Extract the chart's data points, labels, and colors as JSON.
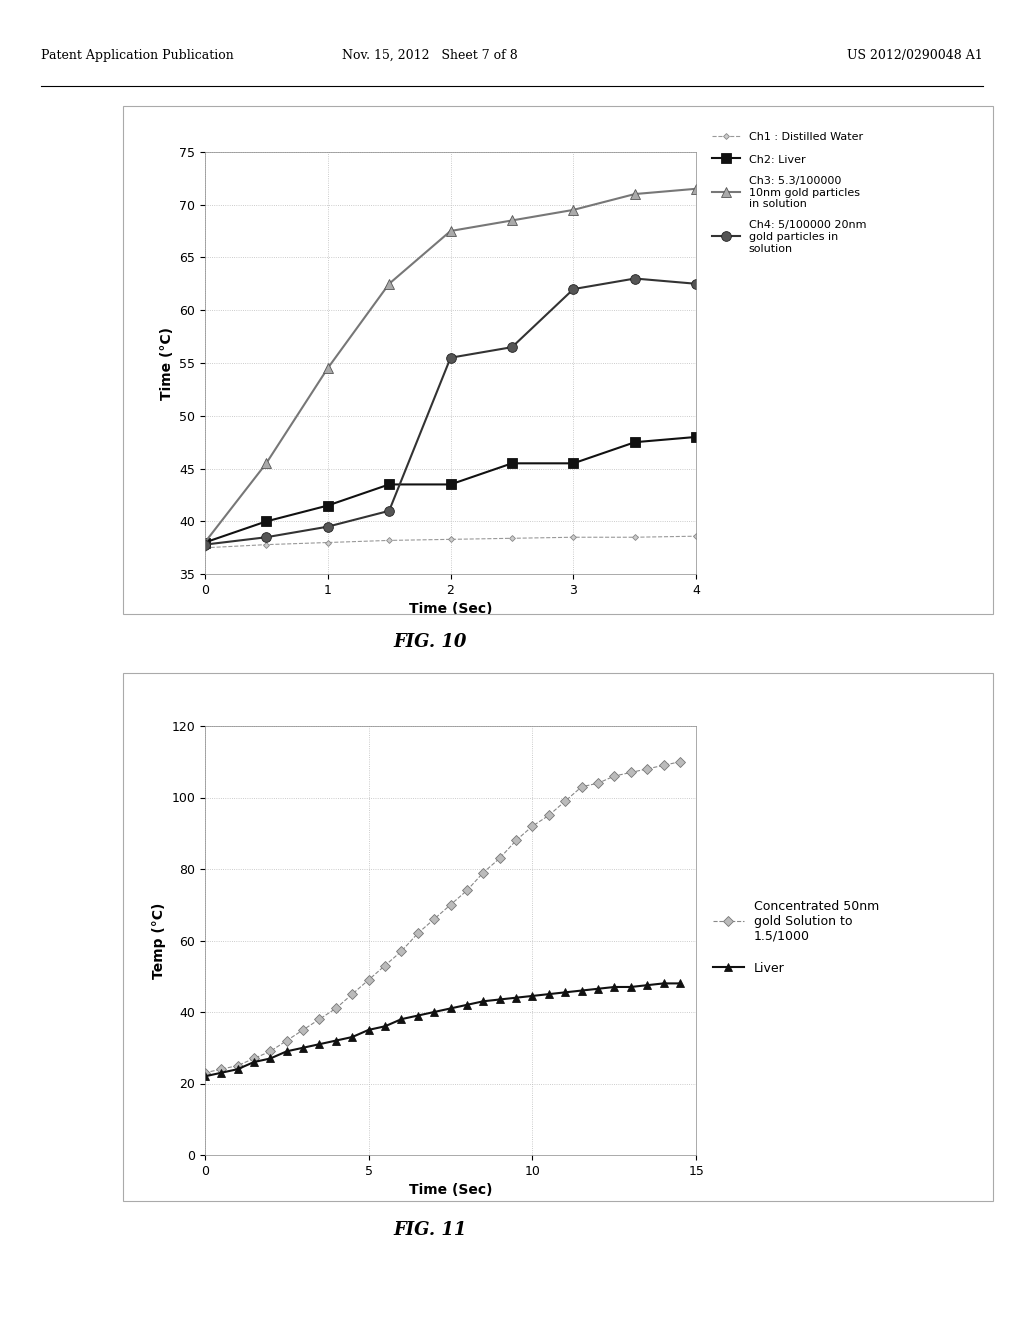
{
  "fig10": {
    "xlabel": "Time (Sec)",
    "ylabel": "Time (°C)",
    "xlim": [
      0,
      4
    ],
    "ylim": [
      35,
      75
    ],
    "yticks": [
      35,
      40,
      45,
      50,
      55,
      60,
      65,
      70,
      75
    ],
    "xticks": [
      0,
      1,
      2,
      3,
      4
    ],
    "series": [
      {
        "label": "Ch1 : Distilled Water",
        "x": [
          0,
          0.5,
          1.0,
          1.5,
          2.0,
          2.5,
          3.0,
          3.5,
          4.0
        ],
        "y": [
          37.5,
          37.8,
          38.0,
          38.2,
          38.3,
          38.4,
          38.5,
          38.5,
          38.6
        ],
        "color": "#999999",
        "marker": "D",
        "markersize": 3,
        "linestyle": "--",
        "linewidth": 0.8,
        "markerfacecolor": "#cccccc",
        "markeredgecolor": "#888888"
      },
      {
        "label": "Ch2: Liver",
        "x": [
          0,
          0.5,
          1.0,
          1.5,
          2.0,
          2.5,
          3.0,
          3.5,
          4.0
        ],
        "y": [
          38.0,
          40.0,
          41.5,
          43.5,
          43.5,
          45.5,
          45.5,
          47.5,
          48.0
        ],
        "color": "#111111",
        "marker": "s",
        "markersize": 7,
        "linestyle": "-",
        "linewidth": 1.5,
        "markerfacecolor": "#111111",
        "markeredgecolor": "#111111"
      },
      {
        "label": "Ch3: 5.3/100000\n10nm gold particles\nin solution",
        "x": [
          0,
          0.5,
          1.0,
          1.5,
          2.0,
          2.5,
          3.0,
          3.5,
          4.0
        ],
        "y": [
          38.0,
          45.5,
          54.5,
          62.5,
          67.5,
          68.5,
          69.5,
          71.0,
          71.5
        ],
        "color": "#777777",
        "marker": "^",
        "markersize": 7,
        "linestyle": "-",
        "linewidth": 1.5,
        "markerfacecolor": "#aaaaaa",
        "markeredgecolor": "#555555"
      },
      {
        "label": "Ch4: 5/100000 20nm\ngold particles in\nsolution",
        "x": [
          0,
          0.5,
          1.0,
          1.5,
          2.0,
          2.5,
          3.0,
          3.5,
          4.0
        ],
        "y": [
          37.8,
          38.5,
          39.5,
          41.0,
          55.5,
          56.5,
          62.0,
          63.0,
          62.5
        ],
        "color": "#333333",
        "marker": "o",
        "markersize": 7,
        "linestyle": "-",
        "linewidth": 1.5,
        "markerfacecolor": "#555555",
        "markeredgecolor": "#222222"
      }
    ]
  },
  "fig11": {
    "xlabel": "Time (Sec)",
    "ylabel": "Temp (°C)",
    "xlim": [
      0,
      15
    ],
    "ylim": [
      0,
      120
    ],
    "yticks": [
      0,
      20,
      40,
      60,
      80,
      100,
      120
    ],
    "xticks": [
      0,
      5,
      10,
      15
    ],
    "series": [
      {
        "label": "Concentrated 50nm\ngold Solution to\n1.5/1000",
        "x": [
          0,
          0.5,
          1.0,
          1.5,
          2.0,
          2.5,
          3.0,
          3.5,
          4.0,
          4.5,
          5.0,
          5.5,
          6.0,
          6.5,
          7.0,
          7.5,
          8.0,
          8.5,
          9.0,
          9.5,
          10.0,
          10.5,
          11.0,
          11.5,
          12.0,
          12.5,
          13.0,
          13.5,
          14.0,
          14.5
        ],
        "y": [
          23,
          24,
          25,
          27,
          29,
          32,
          35,
          38,
          41,
          45,
          49,
          53,
          57,
          62,
          66,
          70,
          74,
          79,
          83,
          88,
          92,
          95,
          99,
          103,
          104,
          106,
          107,
          108,
          109,
          110
        ],
        "color": "#888888",
        "marker": "D",
        "markersize": 5,
        "linestyle": "--",
        "linewidth": 0.8,
        "markerfacecolor": "#bbbbbb",
        "markeredgecolor": "#777777"
      },
      {
        "label": "Liver",
        "x": [
          0,
          0.5,
          1.0,
          1.5,
          2.0,
          2.5,
          3.0,
          3.5,
          4.0,
          4.5,
          5.0,
          5.5,
          6.0,
          6.5,
          7.0,
          7.5,
          8.0,
          8.5,
          9.0,
          9.5,
          10.0,
          10.5,
          11.0,
          11.5,
          12.0,
          12.5,
          13.0,
          13.5,
          14.0,
          14.5
        ],
        "y": [
          22,
          23,
          24,
          26,
          27,
          29,
          30,
          31,
          32,
          33,
          35,
          36,
          38,
          39,
          40,
          41,
          42,
          43,
          43.5,
          44,
          44.5,
          45,
          45.5,
          46,
          46.5,
          47,
          47,
          47.5,
          48,
          48
        ],
        "color": "#111111",
        "marker": "^",
        "markersize": 6,
        "linestyle": "-",
        "linewidth": 1.5,
        "markerfacecolor": "#111111",
        "markeredgecolor": "#111111"
      }
    ]
  },
  "header": {
    "left": "Patent Application Publication",
    "center": "Nov. 15, 2012   Sheet 7 of 8",
    "right": "US 2012/0290048 A1"
  },
  "bg_color": "#ffffff",
  "plot_bg": "#ffffff",
  "grid_color": "#bbbbbb",
  "border_color": "#aaaaaa"
}
